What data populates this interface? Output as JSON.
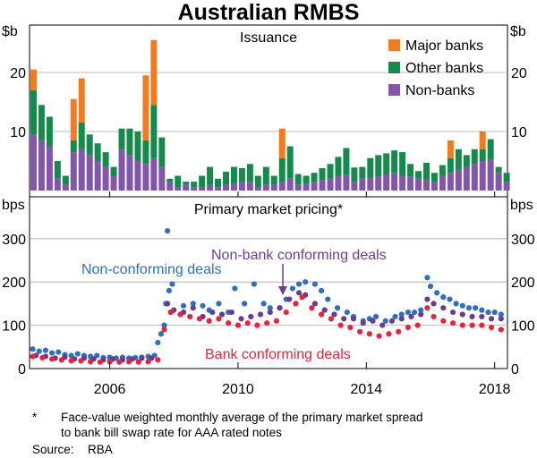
{
  "title": "Australian RMBS",
  "chart_data": [
    {
      "type": "bar",
      "stacked": true,
      "panel_title": "Issuance",
      "ylabel_left": "$b",
      "ylabel_right": "$b",
      "ylim": [
        0,
        27
      ],
      "yticks": [
        10,
        20
      ],
      "x_start": 2003.5,
      "x_step": 0.25,
      "categories": [
        "2003Q3",
        "2003Q4",
        "2004Q1",
        "2004Q2",
        "2004Q3",
        "2004Q4",
        "2005Q1",
        "2005Q2",
        "2005Q3",
        "2005Q4",
        "2006Q1",
        "2006Q2",
        "2006Q3",
        "2006Q4",
        "2007Q1",
        "2007Q2",
        "2007Q3",
        "2007Q4",
        "2008Q1",
        "2008Q2",
        "2008Q3",
        "2008Q4",
        "2009Q1",
        "2009Q2",
        "2009Q3",
        "2009Q4",
        "2010Q1",
        "2010Q2",
        "2010Q3",
        "2010Q4",
        "2011Q1",
        "2011Q2",
        "2011Q3",
        "2011Q4",
        "2012Q1",
        "2012Q2",
        "2012Q3",
        "2012Q4",
        "2013Q1",
        "2013Q2",
        "2013Q3",
        "2013Q4",
        "2014Q1",
        "2014Q2",
        "2014Q3",
        "2014Q4",
        "2015Q1",
        "2015Q2",
        "2015Q3",
        "2015Q4",
        "2016Q1",
        "2016Q2",
        "2016Q3",
        "2016Q4",
        "2017Q1",
        "2017Q2",
        "2017Q3",
        "2017Q4",
        "2018Q1",
        "2018Q2"
      ],
      "series": [
        {
          "name": "Non-banks",
          "color": "#8256a8",
          "values": [
            9.5,
            8.5,
            7.5,
            2,
            1,
            6.5,
            7,
            6,
            5,
            4,
            2.5,
            7,
            6,
            5,
            4.5,
            5.5,
            4,
            1.5,
            0.5,
            1,
            0.5,
            0.5,
            1,
            0.5,
            1,
            1.2,
            1.5,
            1.5,
            0.5,
            1,
            1,
            1.5,
            2,
            1,
            1.2,
            1.5,
            1.8,
            2,
            2.5,
            2.7,
            1.5,
            2,
            2.2,
            2.5,
            2.8,
            3,
            2.5,
            2.3,
            2,
            1.7,
            1.5,
            2.5,
            3,
            3.5,
            4,
            4.5,
            5,
            5.2,
            3,
            1.5
          ]
        },
        {
          "name": "Other banks",
          "color": "#168a4c",
          "values": [
            7.5,
            6,
            5,
            3,
            1.5,
            2,
            4.5,
            3.5,
            3,
            2.5,
            1.5,
            3.5,
            4.5,
            5,
            4,
            9,
            5,
            0.5,
            2,
            0.5,
            1,
            2,
            3,
            1.5,
            2.2,
            2.8,
            2.3,
            3,
            2,
            3,
            1.5,
            4,
            5.5,
            1.8,
            1.3,
            1.5,
            2,
            2.5,
            3.2,
            4.5,
            2.4,
            2,
            3.3,
            3.5,
            3.5,
            3.8,
            4,
            2.2,
            1.3,
            3,
            1.5,
            1.8,
            2.5,
            3.5,
            2,
            2.5,
            2,
            3.5,
            1,
            1.5
          ]
        },
        {
          "name": "Major banks",
          "color": "#f07b22",
          "values": [
            3.5,
            0,
            0,
            0,
            0,
            7,
            7.5,
            0,
            0,
            0,
            0,
            0,
            0,
            0,
            11,
            11,
            0,
            0,
            0,
            0,
            0,
            0,
            0,
            0,
            0,
            0,
            0,
            0,
            0,
            0,
            0,
            5,
            0,
            0,
            0,
            0,
            0,
            0,
            0,
            0,
            0,
            0,
            0,
            0,
            0,
            0,
            0,
            0,
            0,
            0,
            0,
            0,
            3,
            0,
            0,
            0,
            3,
            0,
            0,
            0
          ]
        }
      ]
    },
    {
      "type": "scatter",
      "panel_title": "Primary market pricing*",
      "ylabel_left": "bps",
      "ylabel_right": "bps",
      "ylim": [
        0,
        345
      ],
      "yticks": [
        0,
        100,
        200,
        300
      ],
      "xlim": [
        2003.5,
        2018.4
      ],
      "xticks": [
        2006,
        2010,
        2014,
        2018
      ],
      "series": [
        {
          "name": "Non-conforming deals",
          "color": "#2f6fbc",
          "points": [
            [
              2003.6,
              45
            ],
            [
              2003.8,
              40
            ],
            [
              2004.0,
              42
            ],
            [
              2004.2,
              36
            ],
            [
              2004.4,
              38
            ],
            [
              2004.6,
              32
            ],
            [
              2004.8,
              30
            ],
            [
              2005.0,
              34
            ],
            [
              2005.2,
              30
            ],
            [
              2005.4,
              28
            ],
            [
              2005.6,
              30
            ],
            [
              2005.8,
              25
            ],
            [
              2006.0,
              26
            ],
            [
              2006.2,
              24
            ],
            [
              2006.4,
              26
            ],
            [
              2006.6,
              24
            ],
            [
              2006.8,
              25
            ],
            [
              2007.0,
              26
            ],
            [
              2007.2,
              28
            ],
            [
              2007.4,
              30
            ],
            [
              2007.5,
              60
            ],
            [
              2007.6,
              80
            ],
            [
              2007.7,
              100
            ],
            [
              2007.75,
              150
            ],
            [
              2007.8,
              318
            ],
            [
              2007.85,
              180
            ],
            [
              2007.95,
              195
            ],
            [
              2008.3,
              145
            ],
            [
              2008.6,
              150
            ],
            [
              2008.9,
              145
            ],
            [
              2009.1,
              135
            ],
            [
              2009.4,
              150
            ],
            [
              2009.7,
              130
            ],
            [
              2009.9,
              185
            ],
            [
              2010.2,
              150
            ],
            [
              2010.5,
              195
            ],
            [
              2010.8,
              150
            ],
            [
              2011.0,
              140
            ],
            [
              2011.3,
              140
            ],
            [
              2011.5,
              160
            ],
            [
              2011.7,
              185
            ],
            [
              2011.9,
              195
            ],
            [
              2012.1,
              200
            ],
            [
              2012.4,
              195
            ],
            [
              2012.6,
              180
            ],
            [
              2012.8,
              160
            ],
            [
              2013.1,
              140
            ],
            [
              2013.4,
              130
            ],
            [
              2013.6,
              120
            ],
            [
              2013.9,
              110
            ],
            [
              2014.1,
              115
            ],
            [
              2014.3,
              120
            ],
            [
              2014.6,
              110
            ],
            [
              2014.9,
              120
            ],
            [
              2015.1,
              125
            ],
            [
              2015.3,
              130
            ],
            [
              2015.5,
              130
            ],
            [
              2015.7,
              135
            ],
            [
              2015.9,
              210
            ],
            [
              2016.0,
              190
            ],
            [
              2016.2,
              175
            ],
            [
              2016.4,
              165
            ],
            [
              2016.6,
              160
            ],
            [
              2016.8,
              150
            ],
            [
              2017.0,
              145
            ],
            [
              2017.2,
              140
            ],
            [
              2017.4,
              140
            ],
            [
              2017.6,
              135
            ],
            [
              2017.8,
              130
            ],
            [
              2018.0,
              130
            ],
            [
              2018.2,
              125
            ]
          ]
        },
        {
          "name": "Non-bank conforming deals",
          "color": "#6a3c8f",
          "points": [
            [
              2003.7,
              30
            ],
            [
              2004.0,
              28
            ],
            [
              2004.3,
              24
            ],
            [
              2004.6,
              26
            ],
            [
              2004.9,
              22
            ],
            [
              2005.2,
              24
            ],
            [
              2005.5,
              22
            ],
            [
              2005.8,
              20
            ],
            [
              2006.1,
              22
            ],
            [
              2006.4,
              20
            ],
            [
              2006.7,
              22
            ],
            [
              2007.0,
              24
            ],
            [
              2007.3,
              24
            ],
            [
              2007.8,
              150
            ],
            [
              2008.0,
              135
            ],
            [
              2008.3,
              130
            ],
            [
              2008.6,
              140
            ],
            [
              2008.9,
              120
            ],
            [
              2009.2,
              130
            ],
            [
              2009.5,
              125
            ],
            [
              2009.8,
              130
            ],
            [
              2010.1,
              115
            ],
            [
              2010.4,
              120
            ],
            [
              2010.7,
              125
            ],
            [
              2011.0,
              130
            ],
            [
              2011.3,
              140
            ],
            [
              2011.6,
              160
            ],
            [
              2011.9,
              175
            ],
            [
              2012.1,
              170
            ],
            [
              2012.4,
              150
            ],
            [
              2012.7,
              135
            ],
            [
              2013.0,
              125
            ],
            [
              2013.3,
              115
            ],
            [
              2013.6,
              115
            ],
            [
              2013.9,
              105
            ],
            [
              2014.2,
              110
            ],
            [
              2014.5,
              100
            ],
            [
              2014.8,
              110
            ],
            [
              2015.1,
              115
            ],
            [
              2015.4,
              120
            ],
            [
              2015.7,
              125
            ],
            [
              2015.9,
              160
            ],
            [
              2016.1,
              150
            ],
            [
              2016.4,
              140
            ],
            [
              2016.7,
              130
            ],
            [
              2017.0,
              125
            ],
            [
              2017.3,
              120
            ],
            [
              2017.6,
              120
            ],
            [
              2017.9,
              115
            ],
            [
              2018.2,
              115
            ]
          ]
        },
        {
          "name": "Bank conforming deals",
          "color": "#e8233c",
          "points": [
            [
              2003.6,
              28
            ],
            [
              2003.9,
              25
            ],
            [
              2004.2,
              22
            ],
            [
              2004.5,
              20
            ],
            [
              2004.8,
              18
            ],
            [
              2005.1,
              18
            ],
            [
              2005.4,
              16
            ],
            [
              2005.7,
              15
            ],
            [
              2006.0,
              16
            ],
            [
              2006.3,
              15
            ],
            [
              2006.6,
              16
            ],
            [
              2006.9,
              15
            ],
            [
              2007.2,
              16
            ],
            [
              2007.5,
              20
            ],
            [
              2007.7,
              90
            ],
            [
              2007.9,
              130
            ],
            [
              2008.2,
              125
            ],
            [
              2008.5,
              120
            ],
            [
              2008.8,
              115
            ],
            [
              2009.1,
              110
            ],
            [
              2009.4,
              115
            ],
            [
              2009.7,
              105
            ],
            [
              2010.0,
              100
            ],
            [
              2010.3,
              105
            ],
            [
              2010.6,
              100
            ],
            [
              2010.9,
              105
            ],
            [
              2011.2,
              110
            ],
            [
              2011.5,
              130
            ],
            [
              2011.8,
              150
            ],
            [
              2012.0,
              165
            ],
            [
              2012.3,
              140
            ],
            [
              2012.6,
              125
            ],
            [
              2012.9,
              115
            ],
            [
              2013.2,
              100
            ],
            [
              2013.5,
              95
            ],
            [
              2013.8,
              85
            ],
            [
              2014.1,
              80
            ],
            [
              2014.4,
              75
            ],
            [
              2014.7,
              80
            ],
            [
              2015.0,
              85
            ],
            [
              2015.3,
              95
            ],
            [
              2015.6,
              100
            ],
            [
              2015.9,
              140
            ],
            [
              2016.1,
              120
            ],
            [
              2016.4,
              110
            ],
            [
              2016.7,
              105
            ],
            [
              2017.0,
              100
            ],
            [
              2017.3,
              100
            ],
            [
              2017.6,
              100
            ],
            [
              2017.9,
              95
            ],
            [
              2018.2,
              90
            ]
          ]
        }
      ]
    }
  ],
  "legend": {
    "major_banks": "Major banks",
    "other_banks": "Other banks",
    "non_banks": "Non-banks"
  },
  "annotations": {
    "non_conforming": "Non-conforming deals",
    "non_bank_conforming": "Non-bank conforming deals",
    "bank_conforming": "Bank conforming deals"
  },
  "footnote": {
    "marker": "*",
    "line1": "Face-value weighted monthly average of the primary market spread",
    "line2": "to bank bill swap rate for AAA rated notes"
  },
  "source": {
    "label": "Source:",
    "value": "RBA"
  }
}
